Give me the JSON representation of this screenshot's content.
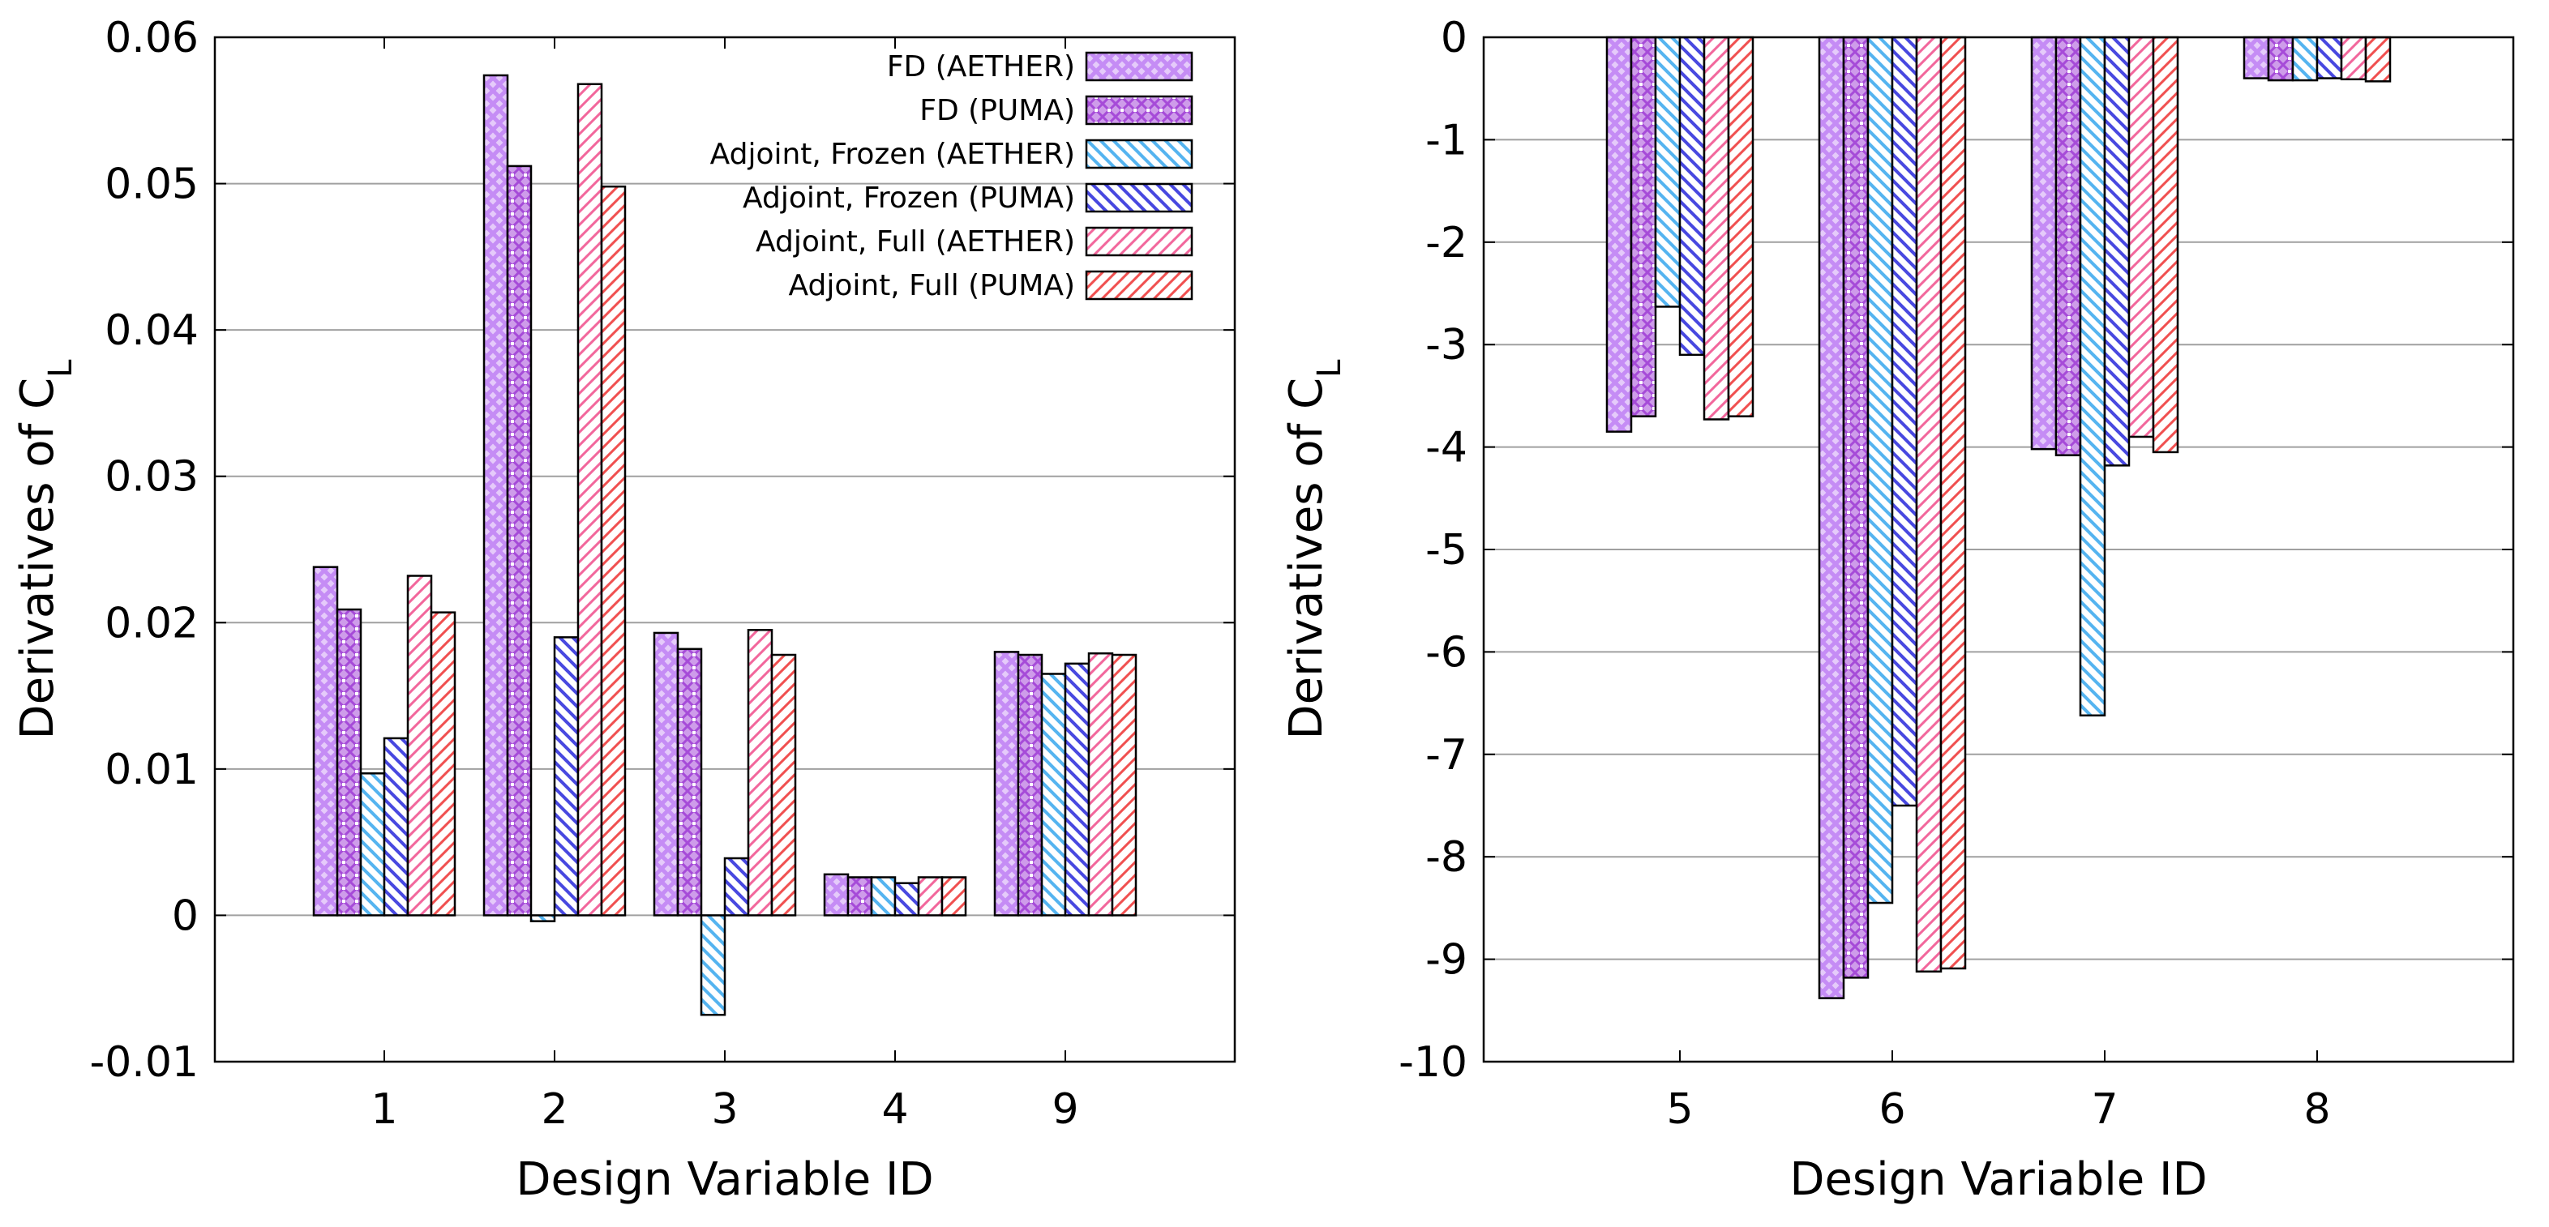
{
  "chart_data": [
    {
      "type": "bar",
      "xlabel": "Design Variable ID",
      "ylabel": "Derivatives of C",
      "ylabel_sub": "L",
      "ylim": [
        -0.01,
        0.06
      ],
      "yticks": [
        -0.01,
        0,
        0.01,
        0.02,
        0.03,
        0.04,
        0.05,
        0.06
      ],
      "ytick_labels": [
        "-0.01",
        "0",
        "0.01",
        "0.02",
        "0.03",
        "0.04",
        "0.05",
        "0.06"
      ],
      "grid": true,
      "legend_position": "top-right",
      "categories": [
        "1",
        "2",
        "3",
        "4",
        "9"
      ],
      "series": [
        {
          "name": "FD (AETHER)",
          "values": [
            0.0238,
            0.0574,
            0.0193,
            0.0028,
            0.018
          ]
        },
        {
          "name": "FD (PUMA)",
          "values": [
            0.0209,
            0.0512,
            0.0182,
            0.0026,
            0.0178
          ]
        },
        {
          "name": "Adjoint, Frozen (AETHER)",
          "values": [
            0.0097,
            -0.0004,
            -0.0068,
            0.0026,
            0.0165
          ]
        },
        {
          "name": "Adjoint, Frozen (PUMA)",
          "values": [
            0.0121,
            0.019,
            0.0039,
            0.0022,
            0.0172
          ]
        },
        {
          "name": "Adjoint, Full (AETHER)",
          "values": [
            0.0232,
            0.0568,
            0.0195,
            0.0026,
            0.0179
          ]
        },
        {
          "name": "Adjoint, Full (PUMA)",
          "values": [
            0.0207,
            0.0498,
            0.0178,
            0.0026,
            0.0178
          ]
        }
      ]
    },
    {
      "type": "bar",
      "xlabel": "Design Variable ID",
      "ylabel": "Derivatives of C",
      "ylabel_sub": "L",
      "ylim": [
        -10,
        0
      ],
      "yticks": [
        -10,
        -9,
        -8,
        -7,
        -6,
        -5,
        -4,
        -3,
        -2,
        -1,
        0
      ],
      "ytick_labels": [
        "-10",
        "-9",
        "-8",
        "-7",
        "-6",
        "-5",
        "-4",
        "-3",
        "-2",
        "-1",
        "0"
      ],
      "grid": true,
      "categories": [
        "5",
        "6",
        "7",
        "8"
      ],
      "series": [
        {
          "name": "FD (AETHER)",
          "values": [
            -3.85,
            -9.38,
            -4.02,
            -0.4
          ]
        },
        {
          "name": "FD (PUMA)",
          "values": [
            -3.7,
            -9.18,
            -4.08,
            -0.42
          ]
        },
        {
          "name": "Adjoint, Frozen (AETHER)",
          "values": [
            -2.63,
            -8.45,
            -6.62,
            -0.42
          ]
        },
        {
          "name": "Adjoint, Frozen (PUMA)",
          "values": [
            -3.1,
            -7.5,
            -4.18,
            -0.4
          ]
        },
        {
          "name": "Adjoint, Full (AETHER)",
          "values": [
            -3.73,
            -9.12,
            -3.9,
            -0.41
          ]
        },
        {
          "name": "Adjoint, Full (PUMA)",
          "values": [
            -3.7,
            -9.09,
            -4.05,
            -0.43
          ]
        }
      ]
    }
  ],
  "styles": {
    "series_colors": [
      "#c58cf5",
      "#a64bd8",
      "#55b4f0",
      "#4848e0",
      "#f2679c",
      "#f05050"
    ],
    "grid_color": "#a0a0a0",
    "axis_color": "#000000"
  }
}
